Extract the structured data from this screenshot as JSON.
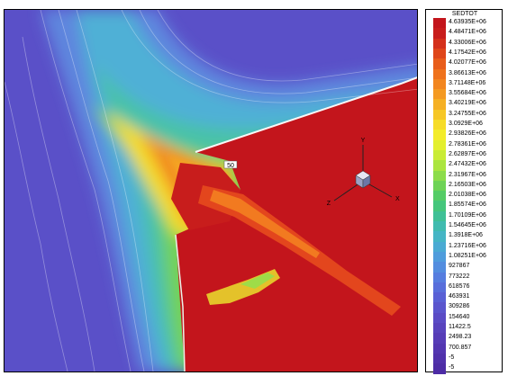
{
  "chart_data": {
    "type": "heatmap",
    "title": "",
    "legend": {
      "title": "SEDTOT",
      "placement": "right",
      "entries": [
        {
          "label": "4.63935E+06",
          "color": "#c3151c"
        },
        {
          "label": "4.48471E+06",
          "color": "#c81d1c"
        },
        {
          "label": "4.33006E+06",
          "color": "#d4301b"
        },
        {
          "label": "4.17542E+06",
          "color": "#df461a"
        },
        {
          "label": "4.02077E+06",
          "color": "#e85d1b"
        },
        {
          "label": "3.86613E+06",
          "color": "#ef721c"
        },
        {
          "label": "3.71148E+06",
          "color": "#f2861f"
        },
        {
          "label": "3.55684E+06",
          "color": "#f49a22"
        },
        {
          "label": "3.40219E+06",
          "color": "#f5b024"
        },
        {
          "label": "3.24755E+06",
          "color": "#f6c726"
        },
        {
          "label": "3.0929E+06",
          "color": "#f6dc28"
        },
        {
          "label": "2.93826E+06",
          "color": "#f3ec2a"
        },
        {
          "label": "2.78361E+06",
          "color": "#e3ef2e"
        },
        {
          "label": "2.62897E+06",
          "color": "#c9ec36"
        },
        {
          "label": "2.47432E+06",
          "color": "#abe53f"
        },
        {
          "label": "2.31967E+06",
          "color": "#8cdc4a"
        },
        {
          "label": "2.16503E+06",
          "color": "#6ed356"
        },
        {
          "label": "2.01038E+06",
          "color": "#55cc66"
        },
        {
          "label": "1.85574E+06",
          "color": "#45c67c"
        },
        {
          "label": "1.70109E+06",
          "color": "#3fc096"
        },
        {
          "label": "1.54645E+06",
          "color": "#40bbaf"
        },
        {
          "label": "1.3918E+06",
          "color": "#45b5c5"
        },
        {
          "label": "1.23716E+06",
          "color": "#4aaad3"
        },
        {
          "label": "1.08251E+06",
          "color": "#4f9cdc"
        },
        {
          "label": "927867",
          "color": "#538ddf"
        },
        {
          "label": "773222",
          "color": "#567ddf"
        },
        {
          "label": "618576",
          "color": "#586edb"
        },
        {
          "label": "463931",
          "color": "#5960d5"
        },
        {
          "label": "309286",
          "color": "#5a55cd"
        },
        {
          "label": "154640",
          "color": "#5a4bc5"
        },
        {
          "label": "11422.5",
          "color": "#5843bd"
        },
        {
          "label": "2498.23",
          "color": "#563cb7"
        },
        {
          "label": "700.857",
          "color": "#5336b1"
        },
        {
          "label": "-5",
          "color": "#5031ab"
        },
        {
          "label": "-5",
          "color": "#4d2ca5"
        }
      ]
    },
    "markers": {
      "small_box_text": "50",
      "triad_labels": [
        "Y",
        "X",
        "Z"
      ]
    }
  }
}
